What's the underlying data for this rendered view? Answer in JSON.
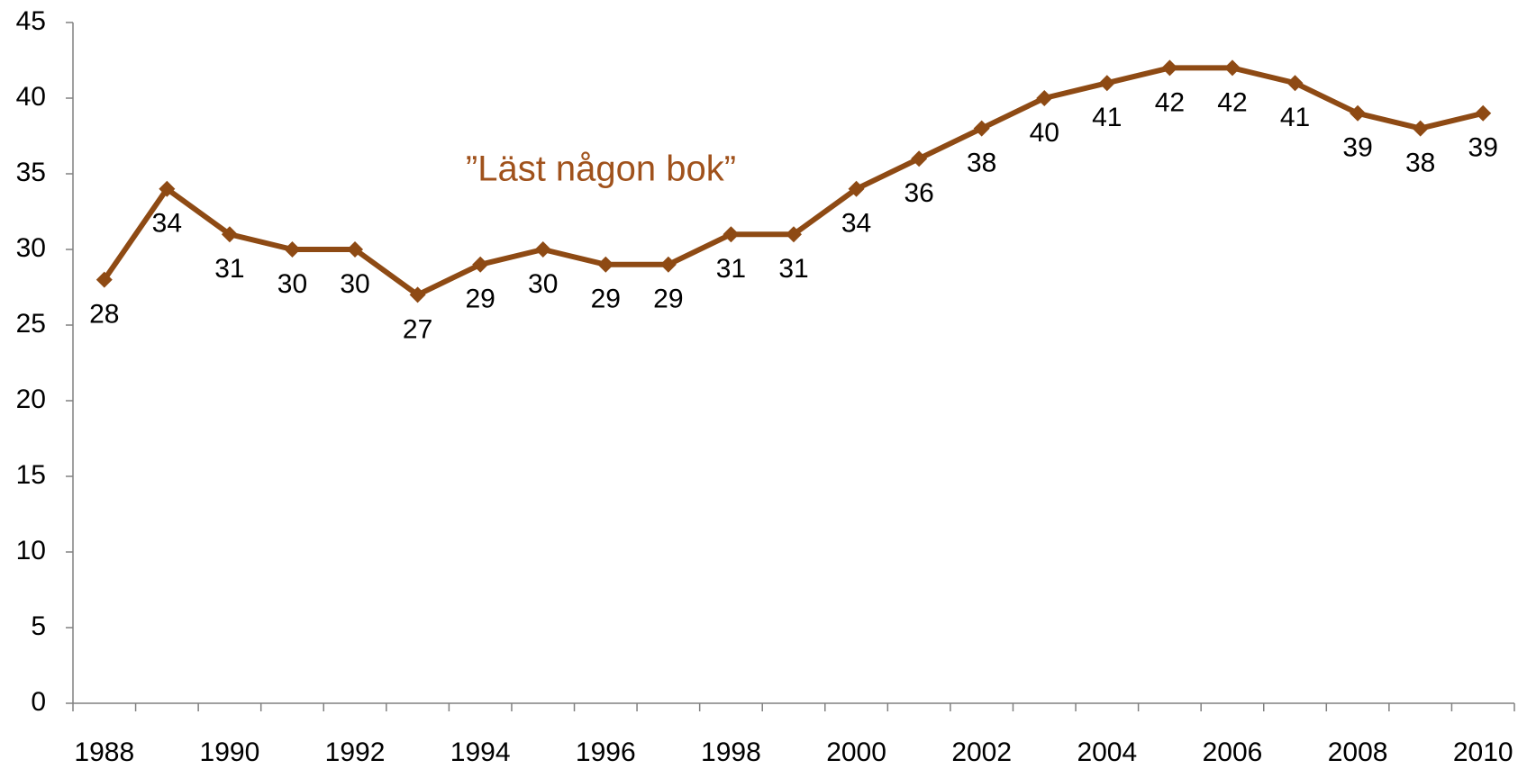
{
  "chart_data": {
    "type": "line",
    "annotation": "”Läst någon bok”",
    "categories": [
      "1988",
      null,
      "1990",
      null,
      "1992",
      null,
      "1994",
      null,
      "1996",
      null,
      "1998",
      null,
      "2000",
      null,
      "2002",
      null,
      "2004",
      null,
      "2006",
      null,
      "2008",
      null,
      "2010"
    ],
    "values": [
      28,
      34,
      31,
      30,
      30,
      27,
      29,
      30,
      29,
      29,
      31,
      31,
      34,
      36,
      38,
      40,
      41,
      42,
      42,
      41,
      39,
      38,
      39
    ],
    "color": "#8e4a14",
    "ylim": [
      0,
      45
    ],
    "yticks": [
      0,
      5,
      10,
      15,
      20,
      25,
      30,
      35,
      40,
      45
    ],
    "grid": false
  }
}
